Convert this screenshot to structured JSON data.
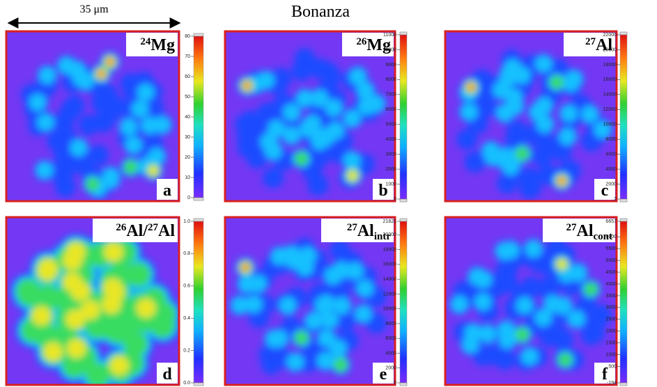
{
  "title": "Bonanza",
  "scale_bar": "35 μm",
  "panels": [
    {
      "letter": "a",
      "label": [
        {
          "text": "24",
          "style": "sup"
        },
        {
          "text": "Mg",
          "style": "normal"
        }
      ],
      "colorbar_ticks": [
        "0",
        "10",
        "20",
        "30",
        "40",
        "50",
        "60",
        "70",
        "80"
      ]
    },
    {
      "letter": "b",
      "label": [
        {
          "text": "26",
          "style": "sup"
        },
        {
          "text": "Mg",
          "style": "normal"
        }
      ],
      "colorbar_ticks": [
        "0",
        "1000",
        "2000",
        "3000",
        "4000",
        "5000",
        "6000",
        "7000",
        "8000",
        "9000",
        "10000",
        "11000"
      ]
    },
    {
      "letter": "c",
      "label": [
        {
          "text": "27",
          "style": "sup"
        },
        {
          "text": "Al",
          "style": "normal"
        }
      ],
      "colorbar_ticks": [
        "2",
        "2000",
        "4000",
        "6000",
        "8000",
        "10000",
        "12000",
        "14000",
        "16000",
        "18000",
        "20000",
        "22000"
      ]
    },
    {
      "letter": "d",
      "label": [
        {
          "text": "26",
          "style": "sup"
        },
        {
          "text": "Al/",
          "style": "normal"
        },
        {
          "text": "27",
          "style": "sup"
        },
        {
          "text": "Al",
          "style": "normal"
        }
      ],
      "colorbar_ticks": [
        "0.0",
        "0.2",
        "0.4",
        "0.6",
        "0.8",
        "1.0"
      ]
    },
    {
      "letter": "e",
      "label": [
        {
          "text": "27",
          "style": "sup"
        },
        {
          "text": "Al",
          "style": "normal"
        },
        {
          "text": "intr",
          "style": "sub"
        }
      ],
      "colorbar_ticks": [
        "0",
        "2000",
        "4000",
        "6000",
        "8000",
        "10000",
        "12000",
        "14000",
        "16000",
        "18000",
        "20000",
        "21821"
      ]
    },
    {
      "letter": "f",
      "label": [
        {
          "text": "27",
          "style": "sup"
        },
        {
          "text": "Al",
          "style": "normal"
        },
        {
          "text": "cont",
          "style": "sub"
        }
      ],
      "colorbar_ticks": [
        "-194",
        "500",
        "1000",
        "1500",
        "2000",
        "2500",
        "3000",
        "3500",
        "4000",
        "4500",
        "5000",
        "5500",
        "6000",
        "6657"
      ]
    }
  ]
}
